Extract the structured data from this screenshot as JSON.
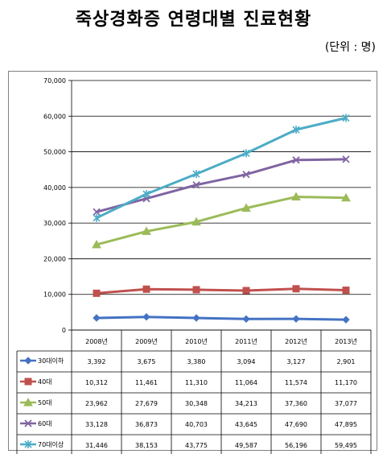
{
  "header": {
    "title": "죽상경화증 연령대별 진료현황",
    "unit": "(단위 : 명)"
  },
  "chart_data": {
    "type": "line",
    "title": "죽상경화증 연령대별 진료현황",
    "unit": "(단위 : 명)",
    "categories": [
      "2008년",
      "2009년",
      "2010년",
      "2011년",
      "2012년",
      "2013년"
    ],
    "ylim": [
      0,
      70000
    ],
    "yticks": [
      "0",
      "10,000",
      "20,000",
      "30,000",
      "40,000",
      "50,000",
      "60,000",
      "70,000"
    ],
    "grid": true,
    "legend": "data-table",
    "series": [
      {
        "name": "30대이하",
        "color": "#4472C4",
        "marker": "diamond",
        "values": [
          3392,
          3675,
          3380,
          3094,
          3127,
          2901
        ],
        "labels": [
          "3,392",
          "3,675",
          "3,380",
          "3,094",
          "3,127",
          "2,901"
        ]
      },
      {
        "name": "40대",
        "color": "#C0504D",
        "marker": "square",
        "values": [
          10312,
          11461,
          11310,
          11064,
          11574,
          11170
        ],
        "labels": [
          "10,312",
          "11,461",
          "11,310",
          "11,064",
          "11,574",
          "11,170"
        ]
      },
      {
        "name": "50대",
        "color": "#9BBB59",
        "marker": "triangle",
        "values": [
          23962,
          27679,
          30348,
          34213,
          37360,
          37077
        ],
        "labels": [
          "23,962",
          "27,679",
          "30,348",
          "34,213",
          "37,360",
          "37,077"
        ]
      },
      {
        "name": "60대",
        "color": "#8064A2",
        "marker": "x",
        "values": [
          33128,
          36873,
          40703,
          43645,
          47690,
          47895
        ],
        "labels": [
          "33,128",
          "36,873",
          "40,703",
          "43,645",
          "47,690",
          "47,895"
        ]
      },
      {
        "name": "70대이상",
        "color": "#4BACC6",
        "marker": "star",
        "values": [
          31446,
          38153,
          43775,
          49587,
          56196,
          59495
        ],
        "labels": [
          "31,446",
          "38,153",
          "43,775",
          "49,587",
          "56,196",
          "59,495"
        ]
      }
    ]
  }
}
